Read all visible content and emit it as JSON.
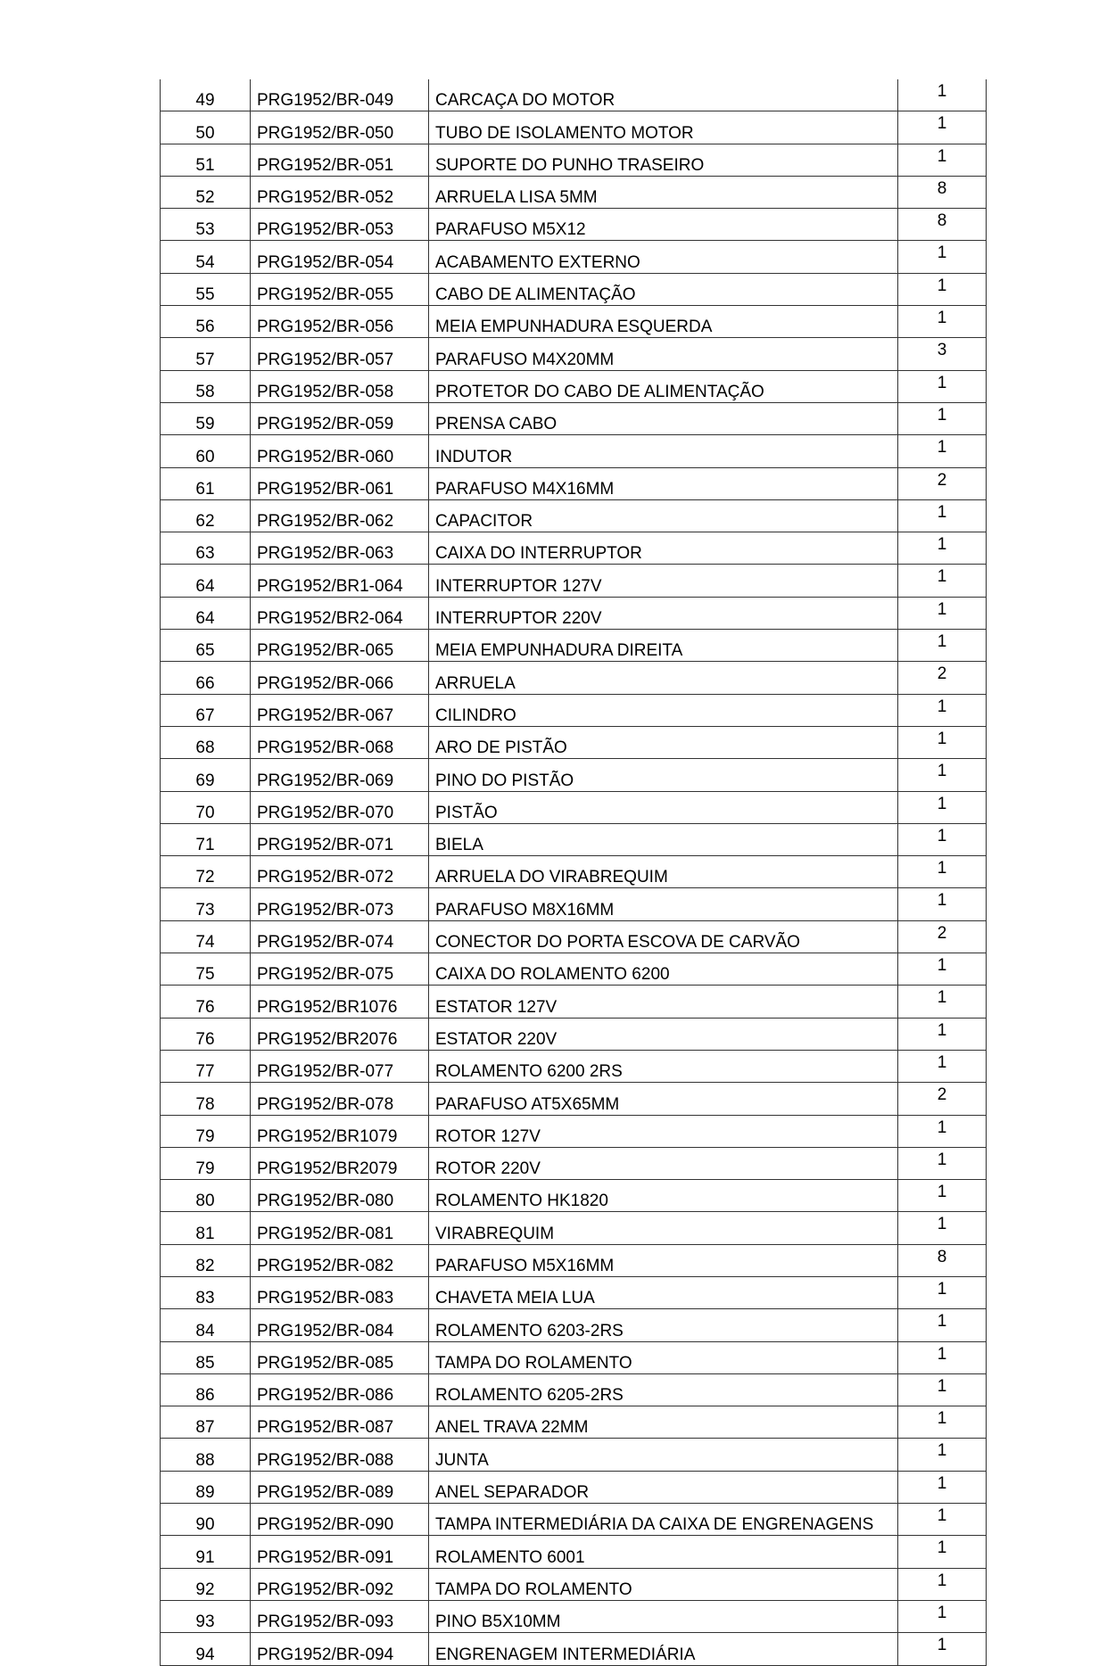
{
  "rows": [
    [
      "49",
      "PRG1952/BR-049",
      "CARCAÇA DO MOTOR",
      "1"
    ],
    [
      "50",
      "PRG1952/BR-050",
      "TUBO DE ISOLAMENTO MOTOR",
      "1"
    ],
    [
      "51",
      "PRG1952/BR-051",
      "SUPORTE DO PUNHO TRASEIRO",
      "1"
    ],
    [
      "52",
      "PRG1952/BR-052",
      "ARRUELA LISA 5MM",
      "8"
    ],
    [
      "53",
      "PRG1952/BR-053",
      "PARAFUSO M5X12",
      "8"
    ],
    [
      "54",
      "PRG1952/BR-054",
      "ACABAMENTO EXTERNO",
      "1"
    ],
    [
      "55",
      "PRG1952/BR-055",
      "CABO DE ALIMENTAÇÃO",
      "1"
    ],
    [
      "56",
      "PRG1952/BR-056",
      "MEIA EMPUNHADURA ESQUERDA",
      "1"
    ],
    [
      "57",
      "PRG1952/BR-057",
      "PARAFUSO M4X20MM",
      "3"
    ],
    [
      "58",
      "PRG1952/BR-058",
      "PROTETOR DO CABO DE ALIMENTAÇÃO",
      "1"
    ],
    [
      "59",
      "PRG1952/BR-059",
      "PRENSA CABO",
      "1"
    ],
    [
      "60",
      "PRG1952/BR-060",
      "INDUTOR",
      "1"
    ],
    [
      "61",
      "PRG1952/BR-061",
      "PARAFUSO M4X16MM",
      "2"
    ],
    [
      "62",
      "PRG1952/BR-062",
      "CAPACITOR",
      "1"
    ],
    [
      "63",
      "PRG1952/BR-063",
      "CAIXA DO INTERRUPTOR",
      "1"
    ],
    [
      "64",
      "PRG1952/BR1-064",
      "INTERRUPTOR 127V",
      "1"
    ],
    [
      "64",
      "PRG1952/BR2-064",
      "INTERRUPTOR 220V",
      "1"
    ],
    [
      "65",
      "PRG1952/BR-065",
      "MEIA EMPUNHADURA DIREITA",
      "1"
    ],
    [
      "66",
      "PRG1952/BR-066",
      "ARRUELA",
      "2"
    ],
    [
      "67",
      "PRG1952/BR-067",
      "CILINDRO",
      "1"
    ],
    [
      "68",
      "PRG1952/BR-068",
      "ARO DE PISTÃO",
      "1"
    ],
    [
      "69",
      "PRG1952/BR-069",
      "PINO DO PISTÃO",
      "1"
    ],
    [
      "70",
      "PRG1952/BR-070",
      "PISTÃO",
      "1"
    ],
    [
      "71",
      "PRG1952/BR-071",
      "BIELA",
      "1"
    ],
    [
      "72",
      "PRG1952/BR-072",
      "ARRUELA DO VIRABREQUIM",
      "1"
    ],
    [
      "73",
      "PRG1952/BR-073",
      "PARAFUSO M8X16MM",
      "1"
    ],
    [
      "74",
      "PRG1952/BR-074",
      "CONECTOR DO PORTA ESCOVA DE CARVÃO",
      "2"
    ],
    [
      "75",
      "PRG1952/BR-075",
      "CAIXA DO ROLAMENTO 6200",
      "1"
    ],
    [
      "76",
      "PRG1952/BR1076",
      "ESTATOR 127V",
      "1"
    ],
    [
      "76",
      "PRG1952/BR2076",
      "ESTATOR 220V",
      "1"
    ],
    [
      "77",
      "PRG1952/BR-077",
      "ROLAMENTO 6200 2RS",
      "1"
    ],
    [
      "78",
      "PRG1952/BR-078",
      "PARAFUSO AT5X65MM",
      "2"
    ],
    [
      "79",
      "PRG1952/BR1079",
      "ROTOR 127V",
      "1"
    ],
    [
      "79",
      "PRG1952/BR2079",
      "ROTOR 220V",
      "1"
    ],
    [
      "80",
      "PRG1952/BR-080",
      "ROLAMENTO HK1820",
      "1"
    ],
    [
      "81",
      "PRG1952/BR-081",
      "VIRABREQUIM",
      "1"
    ],
    [
      "82",
      "PRG1952/BR-082",
      "PARAFUSO M5X16MM",
      "8"
    ],
    [
      "83",
      "PRG1952/BR-083",
      "CHAVETA MEIA LUA",
      "1"
    ],
    [
      "84",
      "PRG1952/BR-084",
      "ROLAMENTO 6203-2RS",
      "1"
    ],
    [
      "85",
      "PRG1952/BR-085",
      "TAMPA DO ROLAMENTO",
      "1"
    ],
    [
      "86",
      "PRG1952/BR-086",
      "ROLAMENTO 6205-2RS",
      "1"
    ],
    [
      "87",
      "PRG1952/BR-087",
      "ANEL TRAVA 22MM",
      "1"
    ],
    [
      "88",
      "PRG1952/BR-088",
      "JUNTA",
      "1"
    ],
    [
      "89",
      "PRG1952/BR-089",
      "ANEL SEPARADOR",
      "1"
    ],
    [
      "90",
      "PRG1952/BR-090",
      "TAMPA INTERMEDIÁRIA DA CAIXA DE ENGRENAGENS",
      "1"
    ],
    [
      "91",
      "PRG1952/BR-091",
      "ROLAMENTO 6001",
      "1"
    ],
    [
      "92",
      "PRG1952/BR-092",
      "TAMPA DO ROLAMENTO",
      "1"
    ],
    [
      "93",
      "PRG1952/BR-093",
      "PINO B5X10MM",
      "1"
    ],
    [
      "94",
      "PRG1952/BR-094",
      "ENGRENAGEM INTERMEDIÁRIA",
      "1"
    ]
  ]
}
